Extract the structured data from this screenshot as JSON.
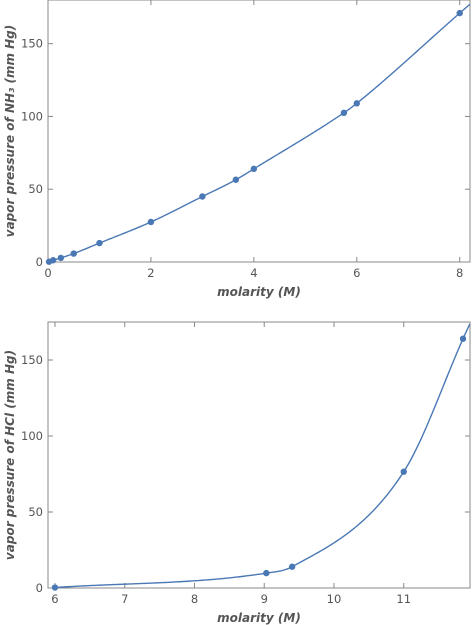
{
  "chart_data": [
    {
      "type": "scatter",
      "xlabel": "molarity (M)",
      "ylabel": "vapor pressure of NH₃ (mm Hg)",
      "xlim": [
        0,
        8.2
      ],
      "ylim": [
        0,
        180
      ],
      "xticks": [
        0,
        2,
        4,
        6,
        8
      ],
      "yticks": [
        0,
        50,
        100,
        150
      ],
      "grid": false,
      "fit_curve": true,
      "color": "#4a78b5",
      "series": [
        {
          "x": [
            0.02,
            0.1,
            0.25,
            0.5,
            1.0,
            2.0,
            3.0,
            3.65,
            4.0,
            5.75,
            6.0,
            8.0
          ],
          "y": [
            0.2,
            1.2,
            2.8,
            5.8,
            13,
            27.5,
            45,
            56.5,
            64,
            102.5,
            109,
            171
          ]
        }
      ]
    },
    {
      "type": "scatter",
      "xlabel": "molarity (M)",
      "ylabel": "vapor pressure of HCl (mm Hg)",
      "xlim": [
        5.9,
        11.95
      ],
      "ylim": [
        0,
        175
      ],
      "xticks": [
        6,
        7,
        8,
        9,
        10,
        11
      ],
      "yticks": [
        0,
        50,
        100,
        150
      ],
      "grid": false,
      "fit_curve": true,
      "color": "#4a78b5",
      "series": [
        {
          "x": [
            6.0,
            9.03,
            9.4,
            11.0,
            11.85
          ],
          "y": [
            0.3,
            9.8,
            14,
            76.5,
            164
          ]
        }
      ]
    }
  ]
}
